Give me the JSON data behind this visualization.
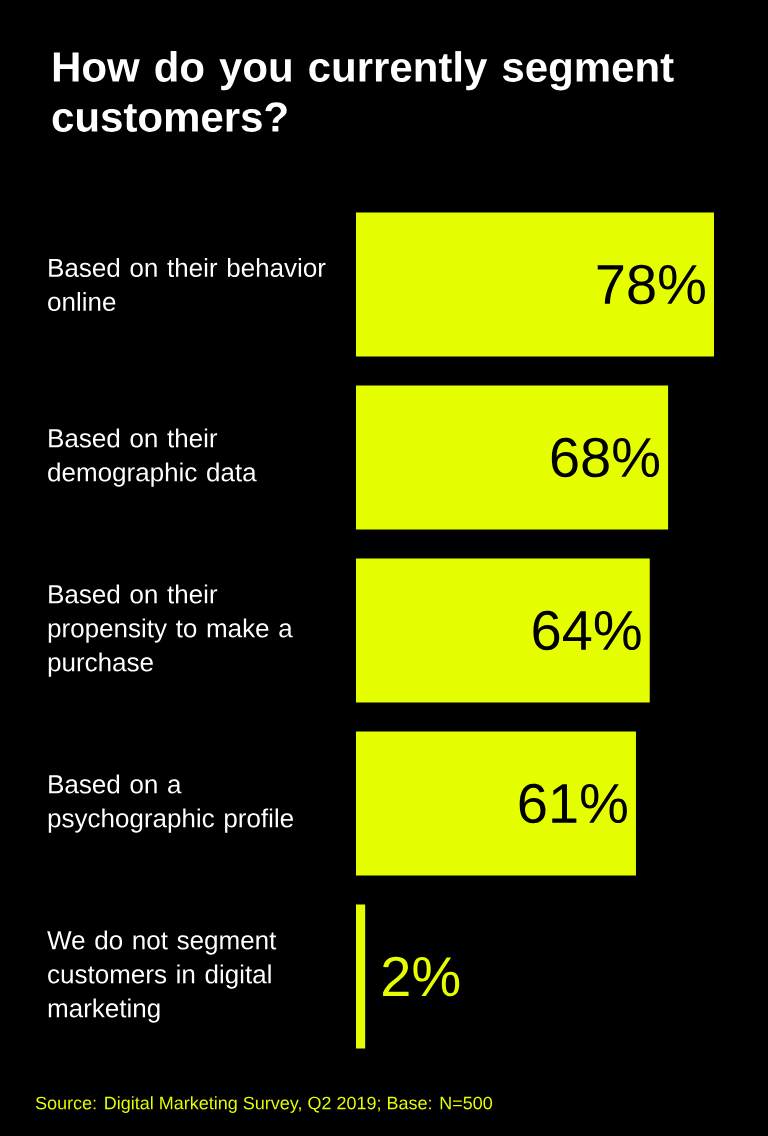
{
  "chart_data": {
    "type": "bar",
    "orientation": "horizontal",
    "title": "How do you currently segment customers?",
    "categories": [
      "Based on their behavior online",
      "Based on their demographic data",
      "Based on their propensity to make a purchase",
      "Based on a psychographic profile",
      "We do not segment customers in digital marketing"
    ],
    "values": [
      78,
      68,
      64,
      61,
      2
    ],
    "value_labels": [
      "78%",
      "68%",
      "64%",
      "61%",
      "2%"
    ],
    "color": "#e6ff00",
    "annotations": [
      "Source: Digital Marketing Survey, Q2 2019; Base: N=500"
    ]
  }
}
